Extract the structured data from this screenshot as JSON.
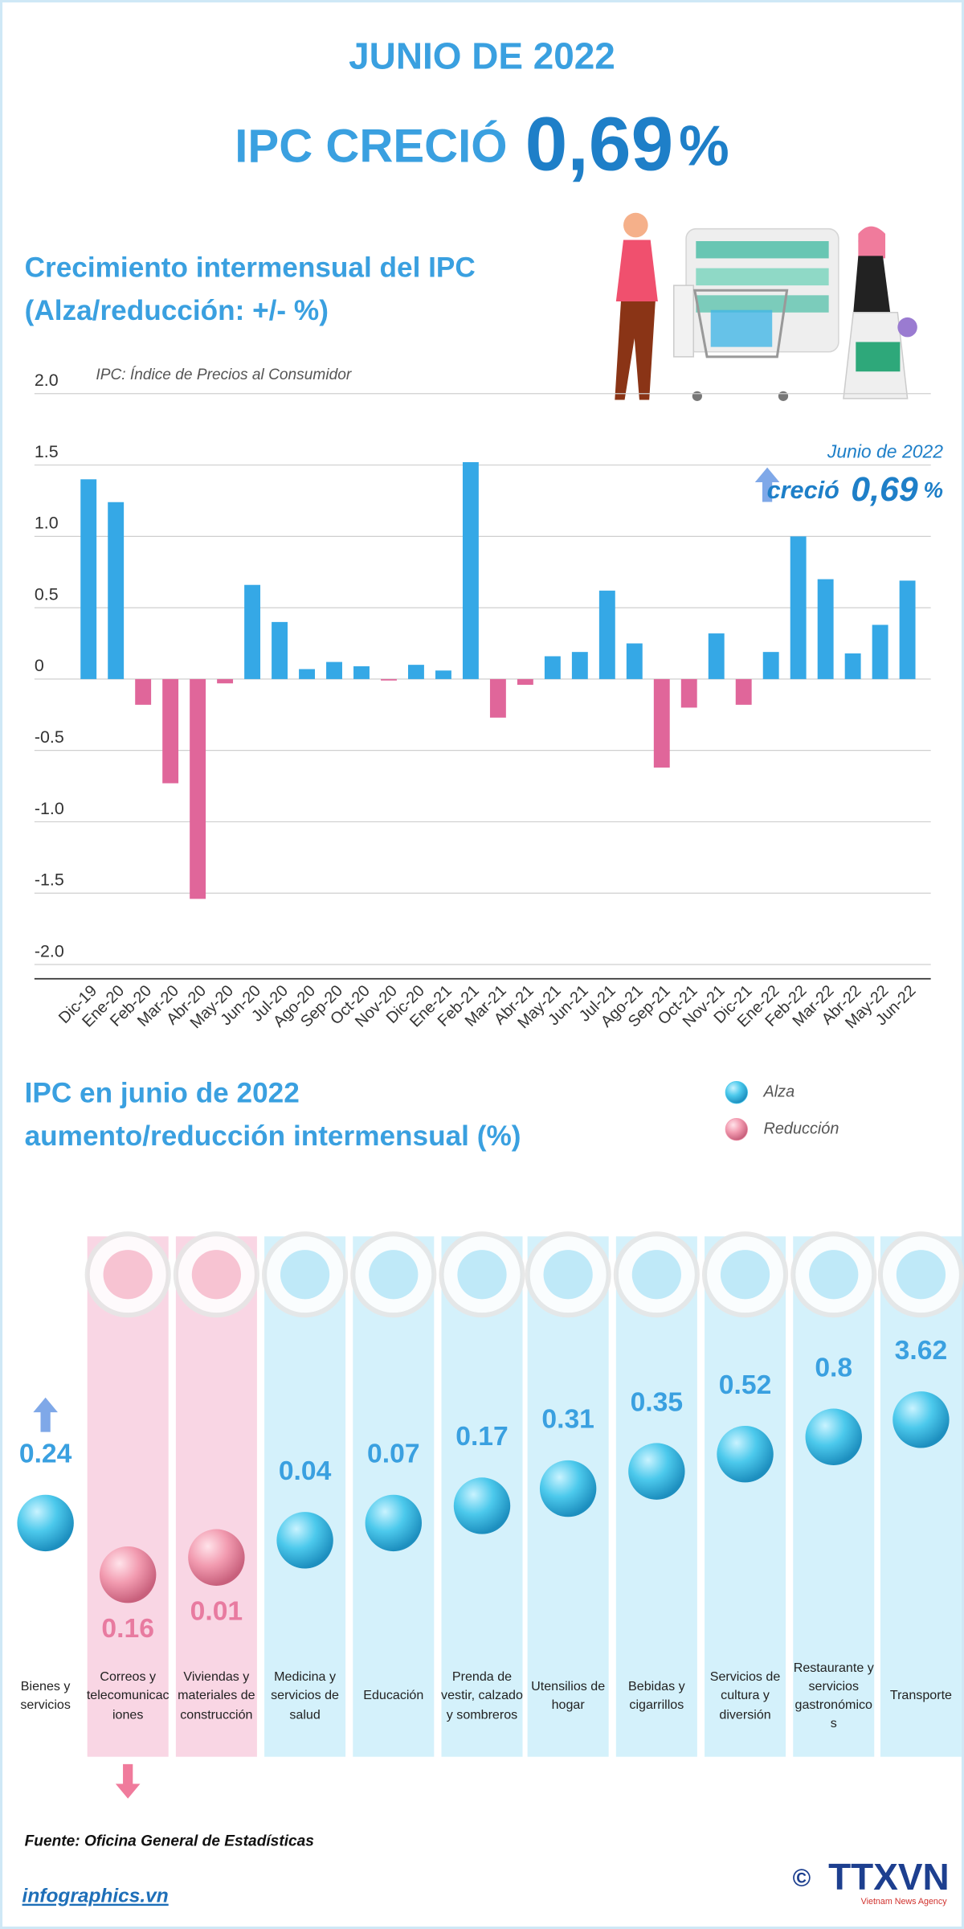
{
  "header": {
    "title": "JUNIO DE 2022",
    "headline": "IPC CRECIÓ",
    "headline_value": "0,69",
    "headline_unit": "%"
  },
  "chart_data": [
    {
      "type": "bar",
      "title": "Crecimiento intermensual del IPC",
      "subtitle": "(Alza/reducción: +/- %)",
      "note": "IPC: Índice de Precios al Consumidor",
      "annotation": {
        "label": "Junio de 2022",
        "text": "creció",
        "value": "0,69",
        "unit": "%"
      },
      "categories": [
        "Dic-19",
        "Ene-20",
        "Feb-20",
        "Mar-20",
        "Abr-20",
        "May-20",
        "Jun-20",
        "Jul-20",
        "Ago-20",
        "Sep-20",
        "Oct-20",
        "Nov-20",
        "Dic-20",
        "Ene-21",
        "Feb-21",
        "Mar-21",
        "Abr-21",
        "May-21",
        "Jun-21",
        "Jul-21",
        "Ago-21",
        "Sep-21",
        "Oct-21",
        "Nov-21",
        "Dic-21",
        "Ene-22",
        "Feb-22",
        "Mar-22",
        "Abr-22",
        "May-22",
        "Jun-22"
      ],
      "values": [
        1.4,
        1.24,
        -0.18,
        -0.73,
        -1.54,
        -0.03,
        0.66,
        0.4,
        0.07,
        0.12,
        0.09,
        -0.01,
        0.1,
        0.06,
        1.52,
        -0.27,
        -0.04,
        0.16,
        0.19,
        0.62,
        0.25,
        -0.62,
        -0.2,
        0.32,
        -0.18,
        0.19,
        1.0,
        0.7,
        0.18,
        0.38,
        0.69
      ],
      "color": "#35a8e6",
      "negative_color": "#e0669a",
      "ylim": [
        -2.1,
        2.0
      ],
      "yticks": [
        {
          "value": 2.0,
          "label": "2.0"
        },
        1.5,
        {
          "value": 1.0,
          "label": "1.0"
        },
        0.5,
        0,
        -0.5,
        {
          "value": -1.0,
          "label": "-1.0"
        },
        -1.5,
        {
          "value": -2.0,
          "label": "-2.0"
        }
      ],
      "grid": true
    },
    {
      "type": "dot",
      "title": "IPC en junio de 2022",
      "subtitle": "aumento/reducción intermensual (%)",
      "legend": [
        {
          "name": "Alza",
          "color": "#4cc9ec",
          "background": "#d4f1fb"
        },
        {
          "name": "Reducción",
          "color": "#f29bb0",
          "background": "#f9d6e4"
        }
      ],
      "categories": [
        "Bienes y servicios",
        "Correos y telecomunicaciones",
        "Viviendas y materiales de construcción",
        "Medicina y servicios de salud",
        "Educación",
        "Prenda de vestir, calzado y sombreros",
        "Utensilios de hogar",
        "Bebidas y cigarrillos",
        "Servicios de cultura y diversión",
        "Restaurante y servicios gastronómicos",
        "Transporte"
      ],
      "values": [
        0.24,
        -0.16,
        -0.01,
        0.04,
        0.07,
        0.17,
        0.31,
        0.35,
        0.52,
        0.8,
        3.62
      ],
      "value_labels": [
        "0.24",
        "0.16",
        "0.01",
        "0.04",
        "0.07",
        "0.17",
        "0.31",
        "0.35",
        "0.52",
        "0.8",
        "3.62"
      ]
    }
  ],
  "footer": {
    "source": "Fuente: Oficina General de Estadísticas",
    "website": "infographics.vn",
    "copyright": "©",
    "logo": "TTXVN",
    "agency": "Vietnam News Agency"
  }
}
